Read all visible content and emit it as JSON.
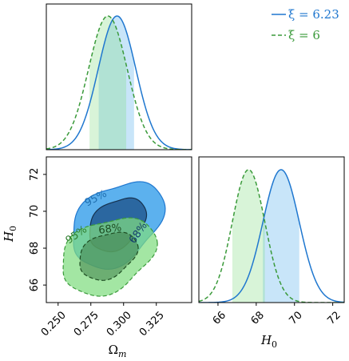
{
  "colors": {
    "blue": "#1f77cf",
    "blue_fill": "#4aa8ec",
    "blue_dark": "#1b4f86",
    "green": "#3a9a3a",
    "green_fill": "#7fdc7f",
    "green_dark": "#3f7f4a"
  },
  "chart_data": [
    {
      "type": "line",
      "panel": "marginal-omega-m",
      "x_range": [
        0.241,
        0.352
      ],
      "series": [
        {
          "name": "ξ = 6.23",
          "mean": 0.295,
          "sigma": 0.0143,
          "ci_68": [
            0.281,
            0.308
          ]
        },
        {
          "name": "ξ = 6",
          "mean": 0.288,
          "sigma": 0.0147,
          "ci_68": [
            0.274,
            0.302
          ]
        }
      ]
    },
    {
      "type": "line",
      "panel": "marginal-h0",
      "x_range": [
        65.0,
        72.6
      ],
      "x_ticks": [
        "66",
        "68",
        "70",
        "72"
      ],
      "xlabel": "H_0",
      "series": [
        {
          "name": "ξ = 6.23",
          "mean": 69.3,
          "sigma": 0.95,
          "ci_68": [
            68.35,
            70.25
          ]
        },
        {
          "name": "ξ = 6",
          "mean": 67.6,
          "sigma": 0.85,
          "ci_68": [
            66.75,
            68.45
          ]
        }
      ]
    },
    {
      "type": "scatter",
      "panel": "joint-omega-m-h0",
      "x_range": [
        0.241,
        0.352
      ],
      "y_range": [
        65.05,
        72.95
      ],
      "x_ticks": [
        "0.250",
        "0.275",
        "0.300",
        "0.325"
      ],
      "y_ticks": [
        "66",
        "68",
        "70",
        "72"
      ],
      "xlabel": "Ω_m",
      "ylabel": "H_0",
      "contour_labels": [
        "95%",
        "68%",
        "95%",
        "68%"
      ],
      "series": [
        {
          "name": "ξ = 6.23",
          "center": [
            0.295,
            69.3
          ],
          "sigma_x": 0.0143,
          "sigma_y": 0.95,
          "rho": 0.35,
          "levels": [
            "68%",
            "95%"
          ]
        },
        {
          "name": "ξ = 6",
          "center": [
            0.288,
            67.6
          ],
          "sigma_x": 0.0147,
          "sigma_y": 0.85,
          "rho": 0.3,
          "levels": [
            "68%",
            "95%"
          ]
        }
      ]
    }
  ],
  "legend": {
    "entry_1": "ξ = 6.23",
    "entry_2": "ξ = 6"
  }
}
